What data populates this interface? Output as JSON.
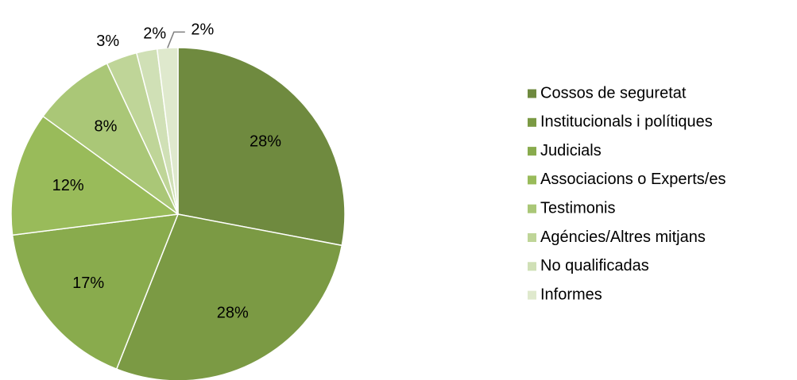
{
  "chart_data": {
    "type": "pie",
    "categories": [
      "Cossos de seguretat",
      "Institucionals i polítiques",
      "Judicials",
      "Associacions o Experts/es",
      "Testimonis",
      "Agéncies/Altres mitjans",
      "No qualificadas",
      "Informes"
    ],
    "values": [
      28,
      28,
      17,
      12,
      8,
      3,
      2,
      2
    ],
    "value_labels": [
      "28%",
      "28%",
      "17%",
      "12%",
      "8%",
      "3%",
      "2%",
      "2%"
    ],
    "colors": [
      "#6f8a3f",
      "#7b9a44",
      "#89ab4d",
      "#99bb5a",
      "#aac777",
      "#bfd598",
      "#d0e0b6",
      "#dfe9cd"
    ],
    "legend": "right"
  }
}
